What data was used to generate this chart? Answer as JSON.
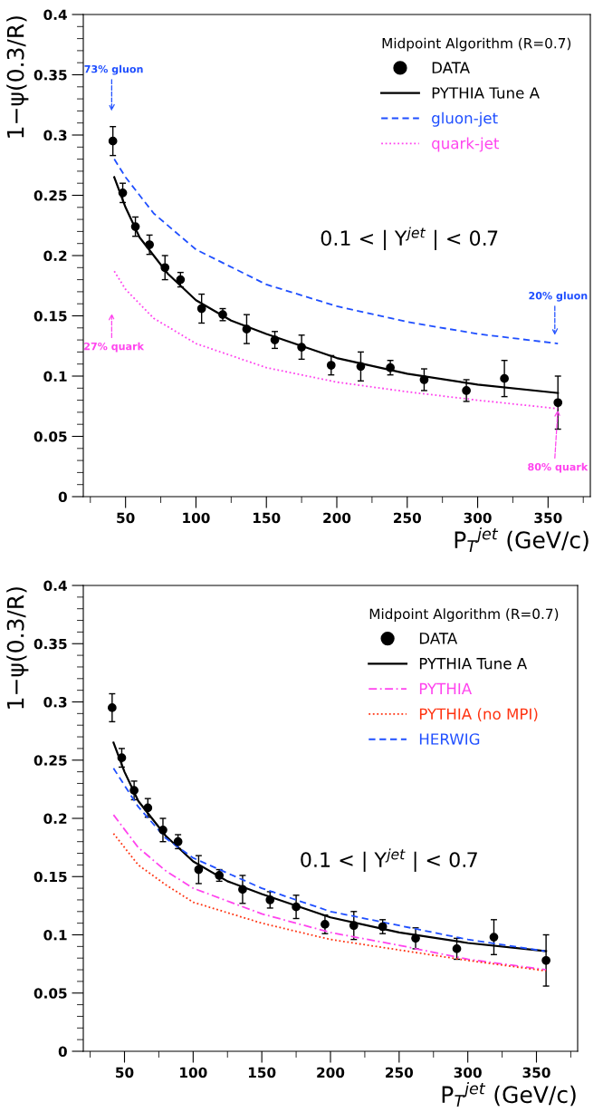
{
  "chart_data": [
    {
      "type": "line",
      "legend_title": "Midpoint Algorithm (R=0.7)",
      "xlabel": "P$_{T}$$^{jet}$ (GeV/c)",
      "ylabel": "1−ψ(0.3/R)",
      "xlim": [
        20,
        380
      ],
      "ylim": [
        0,
        0.4
      ],
      "xticks": [
        50,
        100,
        150,
        200,
        250,
        300,
        350
      ],
      "yticks": [
        0,
        0.05,
        0.1,
        0.15,
        0.2,
        0.25,
        0.3,
        0.35,
        0.4
      ],
      "grid": false,
      "legend": "top right",
      "series": [
        {
          "name": "DATA",
          "type": "scatter",
          "color": "#000000",
          "marker": "circle",
          "x": [
            41,
            48,
            57,
            67,
            78,
            89,
            104,
            119,
            136,
            156,
            175,
            196,
            217,
            238,
            262,
            292,
            319,
            357
          ],
          "values": [
            0.295,
            0.252,
            0.224,
            0.209,
            0.19,
            0.18,
            0.156,
            0.151,
            0.139,
            0.13,
            0.124,
            0.109,
            0.108,
            0.107,
            0.097,
            0.088,
            0.098,
            0.078
          ],
          "errors": [
            0.012,
            0.008,
            0.008,
            0.008,
            0.01,
            0.006,
            0.012,
            0.005,
            0.012,
            0.007,
            0.01,
            0.008,
            0.012,
            0.006,
            0.009,
            0.009,
            0.015,
            0.022
          ]
        },
        {
          "name": "PYTHIA Tune A",
          "color": "#000000",
          "line_style": "solid",
          "x": [
            42,
            50,
            60,
            80,
            100,
            125,
            150,
            200,
            250,
            300,
            357
          ],
          "values": [
            0.265,
            0.24,
            0.215,
            0.185,
            0.163,
            0.146,
            0.135,
            0.115,
            0.102,
            0.093,
            0.086
          ]
        },
        {
          "name": "gluon-jet",
          "color": "#1f4fff",
          "line_style": "dashed",
          "x": [
            42,
            50,
            70,
            100,
            150,
            200,
            250,
            300,
            357
          ],
          "values": [
            0.28,
            0.265,
            0.235,
            0.205,
            0.176,
            0.158,
            0.145,
            0.135,
            0.127
          ]
        },
        {
          "name": "quark-jet",
          "color": "#ff44ee",
          "line_style": "dotted",
          "x": [
            42,
            50,
            70,
            100,
            150,
            200,
            250,
            300,
            357
          ],
          "values": [
            0.187,
            0.172,
            0.148,
            0.127,
            0.107,
            0.095,
            0.087,
            0.08,
            0.073
          ]
        }
      ],
      "annotations": [
        "73% gluon",
        "20% gluon",
        "27% quark",
        {
          "text": "80% quark",
          "x": 357,
          "y": 0.073
        },
        "0.1 < | Y$^{jet}$ | < 0.7"
      ]
    },
    {
      "type": "line",
      "legend_title": "Midpoint Algorithm (R=0.7)",
      "xlabel": "P$_{T}$$^{jet}$ (GeV/c)",
      "ylabel": "1−ψ(0.3/R)",
      "xlim": [
        20,
        380
      ],
      "ylim": [
        0,
        0.4
      ],
      "xticks": [
        50,
        100,
        150,
        200,
        250,
        300,
        350
      ],
      "yticks": [
        0,
        0.05,
        0.1,
        0.15,
        0.2,
        0.25,
        0.3,
        0.35,
        0.4
      ],
      "grid": false,
      "legend": "top right",
      "series": [
        {
          "name": "DATA",
          "type": "scatter",
          "color": "#000000",
          "marker": "circle",
          "x": [
            41,
            48,
            57,
            67,
            78,
            89,
            104,
            119,
            136,
            156,
            175,
            196,
            217,
            238,
            262,
            292,
            319,
            357
          ],
          "values": [
            0.295,
            0.252,
            0.224,
            0.209,
            0.19,
            0.18,
            0.156,
            0.151,
            0.139,
            0.13,
            0.124,
            0.109,
            0.108,
            0.107,
            0.097,
            0.088,
            0.098,
            0.078
          ],
          "errors": [
            0.012,
            0.008,
            0.008,
            0.008,
            0.01,
            0.006,
            0.012,
            0.005,
            0.012,
            0.007,
            0.01,
            0.008,
            0.012,
            0.006,
            0.009,
            0.009,
            0.015,
            0.022
          ]
        },
        {
          "name": "PYTHIA Tune A",
          "color": "#000000",
          "line_style": "solid",
          "x": [
            42,
            50,
            60,
            80,
            100,
            125,
            150,
            200,
            250,
            300,
            357
          ],
          "values": [
            0.265,
            0.24,
            0.215,
            0.185,
            0.163,
            0.146,
            0.135,
            0.115,
            0.102,
            0.093,
            0.086
          ]
        },
        {
          "name": "PYTHIA",
          "color": "#ff44ee",
          "line_style": "dashdot",
          "x": [
            42,
            60,
            80,
            100,
            150,
            200,
            250,
            300,
            357
          ],
          "values": [
            0.203,
            0.175,
            0.155,
            0.14,
            0.118,
            0.102,
            0.091,
            0.079,
            0.07
          ]
        },
        {
          "name": "PYTHIA (no MPI)",
          "color": "#ff3311",
          "line_style": "dotted",
          "x": [
            42,
            60,
            80,
            100,
            150,
            200,
            250,
            300,
            357
          ],
          "values": [
            0.187,
            0.16,
            0.143,
            0.128,
            0.11,
            0.096,
            0.087,
            0.078,
            0.069
          ]
        },
        {
          "name": "HERWIG",
          "color": "#1f4fff",
          "line_style": "dashed",
          "x": [
            42,
            60,
            80,
            100,
            150,
            200,
            250,
            300,
            356
          ],
          "values": [
            0.243,
            0.21,
            0.183,
            0.166,
            0.14,
            0.12,
            0.108,
            0.096,
            0.086
          ]
        }
      ],
      "annotations": [
        "0.1 < | Y$^{jet}$ | < 0.7"
      ]
    }
  ]
}
